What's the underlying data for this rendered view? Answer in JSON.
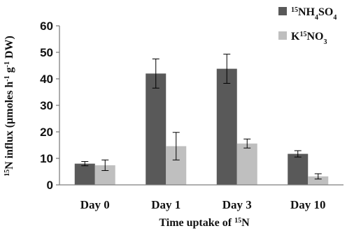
{
  "chart_data": {
    "type": "bar",
    "categories": [
      "Day 0",
      "Day 1",
      "Day 3",
      "Day 10"
    ],
    "series": [
      {
        "name": "15NH4SO4",
        "label_parts": [
          {
            "text": "15",
            "sup": true
          },
          {
            "text": "NH"
          },
          {
            "text": "4",
            "sub": true
          },
          {
            "text": "SO"
          },
          {
            "text": "4",
            "sub": true
          }
        ],
        "color": "#595959",
        "values": [
          8.0,
          42.0,
          43.8,
          11.7
        ],
        "errors": [
          0.8,
          5.5,
          5.5,
          1.2
        ]
      },
      {
        "name": "K15NO3",
        "label_parts": [
          {
            "text": "K"
          },
          {
            "text": "15",
            "sup": true
          },
          {
            "text": "NO"
          },
          {
            "text": "3",
            "sub": true
          }
        ],
        "color": "#bfbfbf",
        "values": [
          7.4,
          14.6,
          15.6,
          3.2
        ],
        "errors": [
          2.0,
          5.2,
          1.7,
          1.0
        ]
      }
    ],
    "xlabel_parts": [
      {
        "text": "Time uptake of "
      },
      {
        "text": "15",
        "sup": true
      },
      {
        "text": "N"
      }
    ],
    "ylabel_parts": [
      {
        "text": "15",
        "sup": true
      },
      {
        "text": "N influx (µmoles h"
      },
      {
        "text": "-1",
        "sup": true
      },
      {
        "text": " g"
      },
      {
        "text": "-1",
        "sup": true
      },
      {
        "text": " DW)"
      }
    ],
    "ylim": [
      0,
      60
    ],
    "yticks": [
      0,
      10,
      20,
      30,
      40,
      50,
      60
    ],
    "grid": false,
    "legend_position": "top-right"
  }
}
